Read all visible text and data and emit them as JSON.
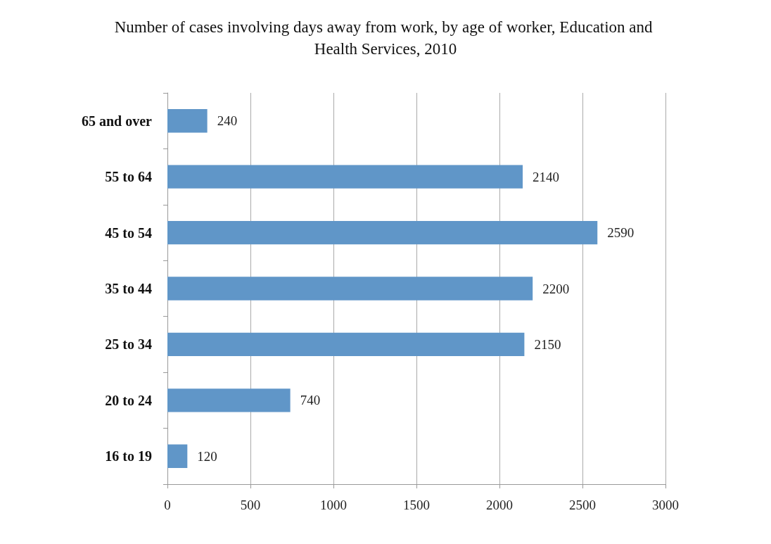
{
  "chart_data": {
    "type": "bar",
    "orientation": "horizontal",
    "title": "Number of cases involving days away from work, by age of worker, Education and Health Services, 2010",
    "categories": [
      "65 and over",
      "55 to 64",
      "45 to 54",
      "35 to 44",
      "25 to 34",
      "20 to 24",
      "16 to 19"
    ],
    "values": [
      240,
      2140,
      2590,
      2200,
      2150,
      740,
      120
    ],
    "color": "#6096c8",
    "xlim": [
      0,
      3000
    ],
    "xticks": [
      0,
      500,
      1000,
      1500,
      2000,
      2500,
      3000
    ],
    "grid": "x",
    "data_labels": true
  }
}
